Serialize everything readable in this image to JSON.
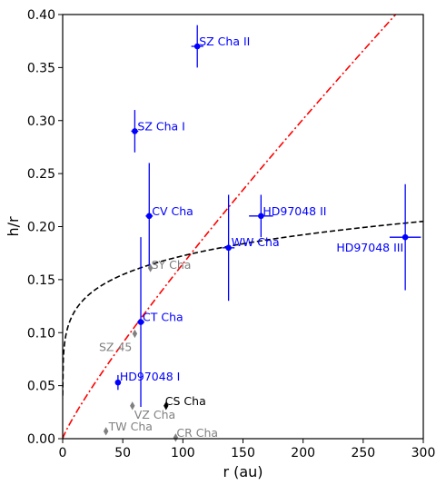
{
  "chart_data": {
    "type": "scatter",
    "xlabel": "r (au)",
    "ylabel": "h/r",
    "xlim": [
      0,
      300
    ],
    "ylim": [
      0,
      0.4
    ],
    "xticks": [
      "0",
      "50",
      "100",
      "150",
      "200",
      "250",
      "300"
    ],
    "yticks": [
      "0.00",
      "0.05",
      "0.10",
      "0.15",
      "0.20",
      "0.25",
      "0.30",
      "0.35",
      "0.40"
    ],
    "grid": false,
    "colors": {
      "detected": "#0000ff",
      "gray": "#808080",
      "black": "#000000",
      "curve_red": "#ff0000",
      "curve_black": "#000000"
    },
    "series": [
      {
        "marker": "circle",
        "color": "#0000ff",
        "points": [
          {
            "label": "SZ Cha II",
            "x": 112,
            "y": 0.37,
            "yerr": 0.02,
            "xerr": 5
          },
          {
            "label": "SZ Cha I",
            "x": 60,
            "y": 0.29,
            "yerr": 0.02,
            "xerr": 3
          },
          {
            "label": "CV Cha",
            "x": 72,
            "y": 0.21,
            "yerr": 0.05,
            "xerr": 3
          },
          {
            "label": "WW Cha",
            "x": 138,
            "y": 0.18,
            "yerr": 0.05,
            "xerr": 5
          },
          {
            "label": "HD97048 II",
            "x": 165,
            "y": 0.21,
            "yerr": 0.02,
            "xerr": 10
          },
          {
            "label": "HD97048 III",
            "x": 285,
            "y": 0.19,
            "yerr": 0.05,
            "xerr": 13
          },
          {
            "label": "CT Cha",
            "x": 65,
            "y": 0.11,
            "yerr": 0.08,
            "xerr": 3
          },
          {
            "label": "HD97048 I",
            "x": 46,
            "y": 0.053,
            "yerr": 0.007,
            "xerr": 1
          }
        ]
      },
      {
        "marker": "diamond",
        "color": "#808080",
        "points": [
          {
            "label": "SY Cha",
            "x": 73,
            "y": 0.161
          },
          {
            "label": "SZ 45",
            "x": 60,
            "y": 0.099
          },
          {
            "label": "VZ Cha",
            "x": 58,
            "y": 0.031
          },
          {
            "label": "TW Cha",
            "x": 36,
            "y": 0.007
          },
          {
            "label": "CR Cha",
            "x": 94,
            "y": 0.001
          }
        ]
      },
      {
        "marker": "diamond",
        "color": "#000000",
        "points": [
          {
            "label": "CS Cha",
            "x": 86,
            "y": 0.031
          }
        ]
      }
    ],
    "curves": [
      {
        "style": "dash-dot",
        "color": "#ff0000",
        "form": "power",
        "a": 0.003,
        "p": 0.87
      },
      {
        "style": "dashed",
        "color": "#000000",
        "form": "power",
        "a": 0.0837,
        "p": 0.157
      }
    ]
  }
}
